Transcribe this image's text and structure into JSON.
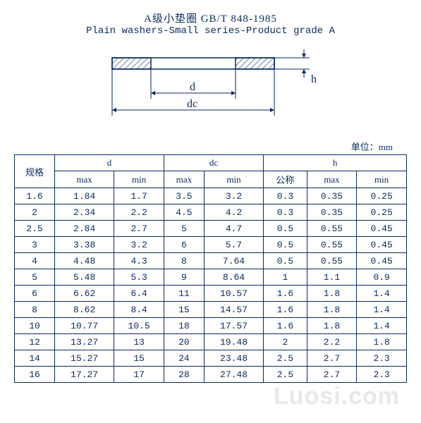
{
  "title": {
    "cn": "A级小垫圈 GB/T 848-1985",
    "en": "Plain washers-Small series-Product grade A"
  },
  "diagram": {
    "labels": {
      "d": "d",
      "dc": "dc",
      "h": "h"
    },
    "stroke": "#0a2a5a",
    "hatch": "#0a2a5a"
  },
  "unit_label": "单位：mm",
  "table": {
    "header": {
      "spec": "规格",
      "d": "d",
      "dc": "dc",
      "h": "h",
      "max": "max",
      "min": "min",
      "nominal": "公称"
    },
    "rows": [
      {
        "spec": "1.6",
        "d_max": "1.84",
        "d_min": "1.7",
        "dc_max": "3.5",
        "dc_min": "3.2",
        "h_nom": "0.3",
        "h_max": "0.35",
        "h_min": "0.25"
      },
      {
        "spec": "2",
        "d_max": "2.34",
        "d_min": "2.2",
        "dc_max": "4.5",
        "dc_min": "4.2",
        "h_nom": "0.3",
        "h_max": "0.35",
        "h_min": "0.25"
      },
      {
        "spec": "2.5",
        "d_max": "2.84",
        "d_min": "2.7",
        "dc_max": "5",
        "dc_min": "4.7",
        "h_nom": "0.5",
        "h_max": "0.55",
        "h_min": "0.45"
      },
      {
        "spec": "3",
        "d_max": "3.38",
        "d_min": "3.2",
        "dc_max": "6",
        "dc_min": "5.7",
        "h_nom": "0.5",
        "h_max": "0.55",
        "h_min": "0.45"
      },
      {
        "spec": "4",
        "d_max": "4.48",
        "d_min": "4.3",
        "dc_max": "8",
        "dc_min": "7.64",
        "h_nom": "0.5",
        "h_max": "0.55",
        "h_min": "0.45"
      },
      {
        "spec": "5",
        "d_max": "5.48",
        "d_min": "5.3",
        "dc_max": "9",
        "dc_min": "8.64",
        "h_nom": "1",
        "h_max": "1.1",
        "h_min": "0.9"
      },
      {
        "spec": "6",
        "d_max": "6.62",
        "d_min": "6.4",
        "dc_max": "11",
        "dc_min": "10.57",
        "h_nom": "1.6",
        "h_max": "1.8",
        "h_min": "1.4"
      },
      {
        "spec": "8",
        "d_max": "8.62",
        "d_min": "8.4",
        "dc_max": "15",
        "dc_min": "14.57",
        "h_nom": "1.6",
        "h_max": "1.8",
        "h_min": "1.4"
      },
      {
        "spec": "10",
        "d_max": "10.77",
        "d_min": "10.5",
        "dc_max": "18",
        "dc_min": "17.57",
        "h_nom": "1.6",
        "h_max": "1.8",
        "h_min": "1.4"
      },
      {
        "spec": "12",
        "d_max": "13.27",
        "d_min": "13",
        "dc_max": "20",
        "dc_min": "19.48",
        "h_nom": "2",
        "h_max": "2.2",
        "h_min": "1.8"
      },
      {
        "spec": "14",
        "d_max": "15.27",
        "d_min": "15",
        "dc_max": "24",
        "dc_min": "23.48",
        "h_nom": "2.5",
        "h_max": "2.7",
        "h_min": "2.3"
      },
      {
        "spec": "16",
        "d_max": "17.27",
        "d_min": "17",
        "dc_max": "28",
        "dc_min": "27.48",
        "h_nom": "2.5",
        "h_max": "2.7",
        "h_min": "2.3"
      }
    ]
  },
  "watermark": "Luosi.com"
}
